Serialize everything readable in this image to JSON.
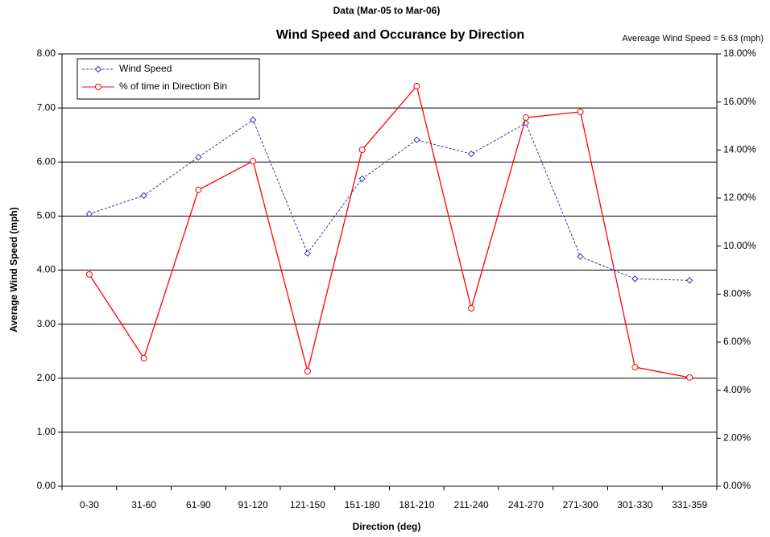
{
  "chart_data": {
    "type": "line",
    "suptitle": "Data (Mar-05 to Mar-06)",
    "title": "Wind Speed and Occurance by Direction",
    "annotation": "Avereage Wind Speed = 5.63 (mph)",
    "xlabel": "Direction (deg)",
    "ylabel": "Average Wind Speed (mph)",
    "categories": [
      "0-30",
      "31-60",
      "61-90",
      "91-120",
      "121-150",
      "151-180",
      "181-210",
      "211-240",
      "241-270",
      "271-300",
      "301-330",
      "331-359"
    ],
    "series": [
      {
        "name": "Wind Speed",
        "color": "#3333aa",
        "dashed": true,
        "marker": "diamond",
        "values": [
          5.04,
          5.38,
          6.09,
          6.78,
          4.31,
          5.69,
          6.41,
          6.15,
          6.72,
          4.25,
          3.84,
          3.81
        ]
      },
      {
        "name": "% of time in Direction Bin",
        "color": "#ff0000",
        "dashed": false,
        "marker": "circle",
        "axis": "y2",
        "values": [
          8.82,
          5.33,
          12.34,
          13.54,
          4.79,
          14.01,
          16.66,
          7.41,
          15.35,
          15.59,
          4.96,
          4.53
        ]
      }
    ],
    "ylim": [
      0,
      8
    ],
    "yticks": [
      {
        "value": 0,
        "label": "0.00"
      },
      {
        "value": 1,
        "label": "1.00"
      },
      {
        "value": 2,
        "label": "2.00"
      },
      {
        "value": 3,
        "label": "3.00"
      },
      {
        "value": 4,
        "label": "4.00"
      },
      {
        "value": 5,
        "label": "5.00"
      },
      {
        "value": 6,
        "label": "6.00"
      },
      {
        "value": 7,
        "label": "7.00"
      },
      {
        "value": 8,
        "label": "8.00"
      }
    ],
    "y2lim": [
      0,
      18
    ],
    "y2ticks": [
      {
        "value": 0,
        "label": "0.00%"
      },
      {
        "value": 2,
        "label": "2.00%"
      },
      {
        "value": 4,
        "label": "4.00%"
      },
      {
        "value": 6,
        "label": "6.00%"
      },
      {
        "value": 8,
        "label": "8.00%"
      },
      {
        "value": 10,
        "label": "10.00%"
      },
      {
        "value": 12,
        "label": "12.00%"
      },
      {
        "value": 14,
        "label": "14.00%"
      },
      {
        "value": 16,
        "label": "16.00%"
      },
      {
        "value": 18,
        "label": "18.00%"
      }
    ],
    "grid": true,
    "legend": "top-left"
  }
}
